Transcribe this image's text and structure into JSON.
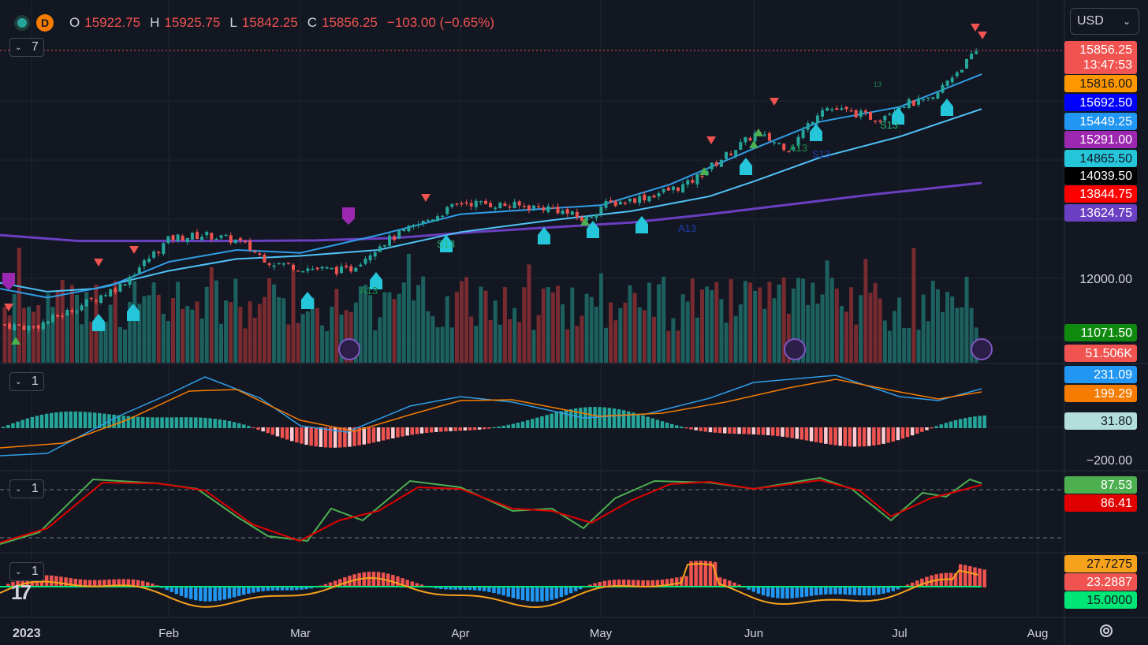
{
  "header": {
    "interval": "D",
    "ohlc": [
      {
        "k": "O",
        "v": "15922.75"
      },
      {
        "k": "H",
        "v": "15925.75"
      },
      {
        "k": "L",
        "v": "15842.25"
      },
      {
        "k": "C",
        "v": "15856.25"
      }
    ],
    "change": "−103.00 (−0.65%)",
    "currency": "USD"
  },
  "pane_controls": [
    {
      "name": "main",
      "count": "7"
    },
    {
      "name": "macd",
      "count": "1"
    },
    {
      "name": "stoch",
      "count": "1"
    },
    {
      "name": "osc",
      "count": "1"
    }
  ],
  "colors": {
    "background": "#131722",
    "up": "#26a69a",
    "down": "#ef5350",
    "ma_fast": "#2f9de6",
    "ma_mid": "#4fc3f7",
    "ma_slow": "#6a3fc2",
    "grid": "#1f2430"
  },
  "price_labels": [
    {
      "text": "15856.25",
      "sub": "13:47:53",
      "bg": "#f05350",
      "fg": "#ffffff"
    },
    {
      "text": "15816.00",
      "bg": "#ff9800",
      "fg": "#131722"
    },
    {
      "text": "15692.50",
      "bg": "#0000ff",
      "fg": "#ffffff"
    },
    {
      "text": "15449.25",
      "bg": "#2196f3",
      "fg": "#ffffff"
    },
    {
      "text": "15291.00",
      "bg": "#9c27b0",
      "fg": "#ffffff"
    },
    {
      "text": "14865.50",
      "bg": "#26c6da",
      "fg": "#131722"
    },
    {
      "text": "14039.50",
      "bg": "#000000",
      "fg": "#ffffff"
    },
    {
      "text": "13844.75",
      "bg": "#ff0000",
      "fg": "#ffffff"
    },
    {
      "text": "13624.75",
      "bg": "#6a3fc2",
      "fg": "#ffffff"
    },
    {
      "text": "12000.00",
      "bg": "",
      "fg": "#d1d4dc"
    },
    {
      "text": "11071.50",
      "bg": "#0f8a0f",
      "fg": "#ffffff"
    },
    {
      "text": "51.506K",
      "bg": "#f05350",
      "fg": "#ffffff"
    }
  ],
  "macd_labels": [
    {
      "text": "231.09",
      "bg": "#2196f3",
      "fg": "#ffffff"
    },
    {
      "text": "199.29",
      "bg": "#f57c00",
      "fg": "#ffffff"
    },
    {
      "text": "31.80",
      "bg": "#b2dfdb",
      "fg": "#131722"
    },
    {
      "text": "−200.00",
      "bg": "",
      "fg": "#d1d4dc"
    }
  ],
  "stoch_labels": [
    {
      "text": "87.53",
      "bg": "#4caf50",
      "fg": "#ffffff"
    },
    {
      "text": "86.41",
      "bg": "#e00000",
      "fg": "#ffffff"
    }
  ],
  "osc_labels": [
    {
      "text": "27.7275",
      "bg": "#f7a21b",
      "fg": "#131722"
    },
    {
      "text": "23.2887",
      "bg": "#f05350",
      "fg": "#ffffff"
    },
    {
      "text": "15.0000",
      "bg": "#00e676",
      "fg": "#131722"
    }
  ],
  "chart_annotations": [
    "S13",
    "A13",
    "S13",
    "A13",
    "S13",
    "A13",
    "13"
  ],
  "chart_data": {
    "type": "candlestick",
    "x_axis": {
      "year": "2023",
      "months": [
        "Feb",
        "Mar",
        "Apr",
        "May",
        "Jun",
        "Jul",
        "Aug"
      ]
    },
    "y_axis_visible_ticks": [
      12000
    ],
    "last_close": 15856.25,
    "series": [
      {
        "name": "price",
        "start": 11150,
        "end": 15856.25,
        "min": 11071.5,
        "max": 15925.75
      },
      {
        "name": "ma_fast",
        "end": 15692.5
      },
      {
        "name": "ma_mid",
        "end": 15449.25
      },
      {
        "name": "ma_slow",
        "end": 13624.75
      }
    ],
    "volume_last": "51.506K",
    "macd": {
      "macd": 231.09,
      "signal": 199.29,
      "histogram": 31.8
    },
    "stochastic": {
      "k": 87.53,
      "d": 86.41
    },
    "oscillator": {
      "value": 27.7275,
      "histogram": 23.2887,
      "level": 15.0
    }
  }
}
